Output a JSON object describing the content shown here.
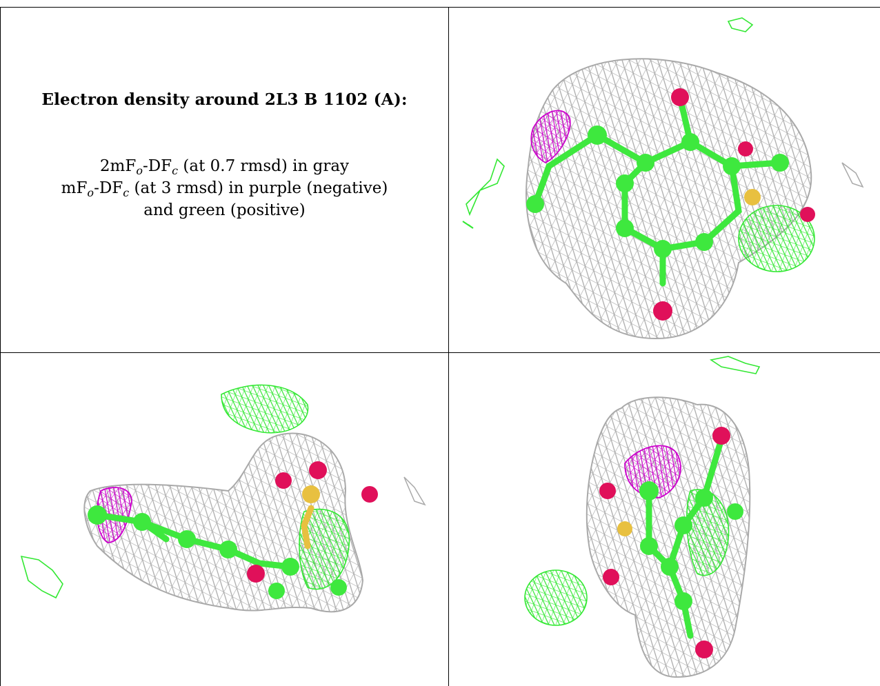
{
  "caption": {
    "title": "Electron density around 2L3 B 1102 (A):",
    "line1": {
      "prefix": "2mF",
      "sub1": "o",
      "mid": "-DF",
      "sub2": "c",
      "suffix": " (at 0.7 rmsd) in gray"
    },
    "line2": {
      "prefix": "mF",
      "sub1": "o",
      "mid": "-DF",
      "sub2": "c",
      "suffix": " (at 3 rmsd) in purple (negative)"
    },
    "line3": "and green (positive)"
  },
  "colors": {
    "mesh_2fofc": "#a9a9a9",
    "mesh_negative": "#cc00cc",
    "mesh_positive": "#33e833",
    "carbon": "#3ee83e",
    "oxygen": "#e0105a",
    "sulfur": "#e8c040"
  },
  "panels": [
    {
      "name": "view-top-right",
      "content": "ligand density view 1"
    },
    {
      "name": "view-bottom-left",
      "content": "ligand density view 2"
    },
    {
      "name": "view-bottom-right",
      "content": "ligand density view 3"
    }
  ]
}
